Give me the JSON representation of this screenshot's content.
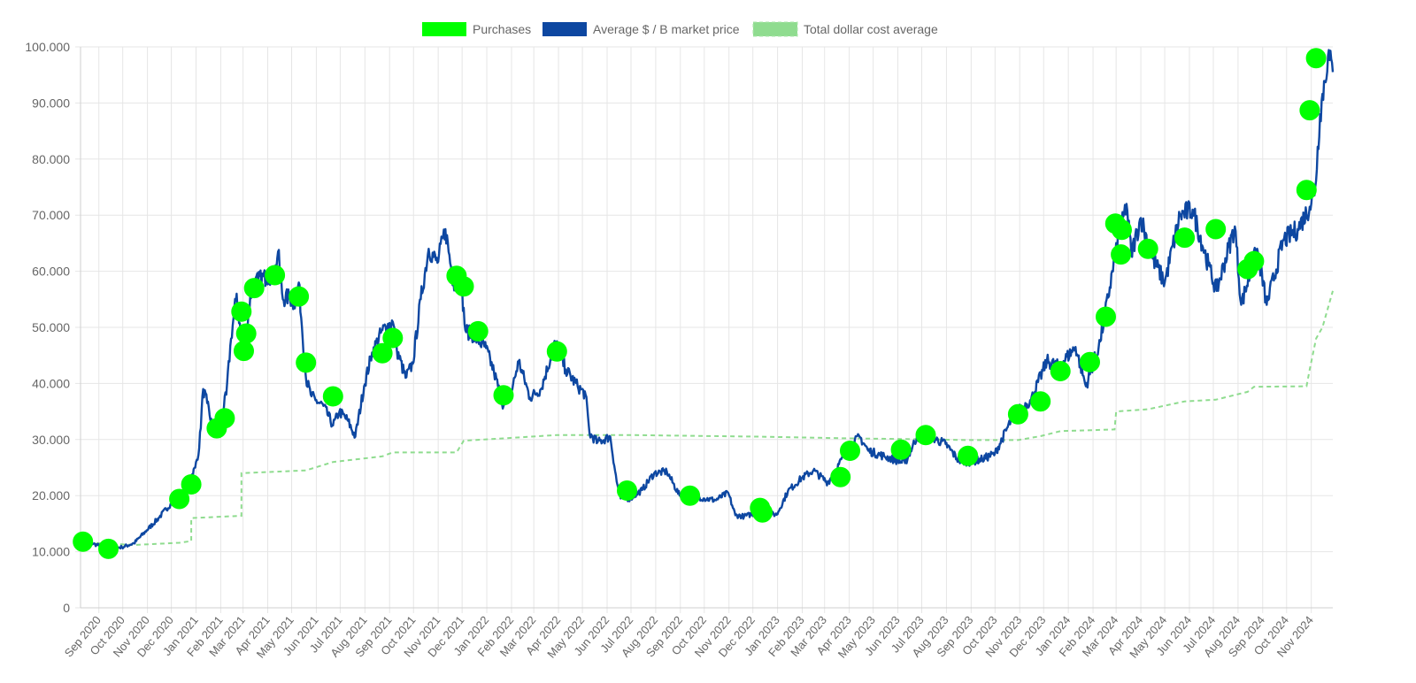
{
  "chart_data": {
    "type": "line",
    "legend_position": "top-center",
    "grid": true,
    "ylim": [
      0,
      100000
    ],
    "y_ticks": [
      "100.000",
      "90.000",
      "80.000",
      "70.000",
      "60.000",
      "50.000",
      "40.000",
      "30.000",
      "20.000",
      "10.000",
      "0"
    ],
    "y_tick_values": [
      100000,
      90000,
      80000,
      70000,
      60000,
      50000,
      40000,
      30000,
      20000,
      10000,
      0
    ],
    "x_start": "2020-08-09",
    "x_end": "2024-11-28",
    "categories": [
      "Sep 2020",
      "Oct 2020",
      "Nov 2020",
      "Dec 2020",
      "Jan 2021",
      "Feb 2021",
      "Mar 2021",
      "Apr 2021",
      "May 2021",
      "Jun 2021",
      "Jul 2021",
      "Aug 2021",
      "Sep 2021",
      "Oct 2021",
      "Nov 2021",
      "Dec 2021",
      "Jan 2022",
      "Feb 2022",
      "Mar 2022",
      "Apr 2022",
      "May 2022",
      "Jun 2022",
      "Jul 2022",
      "Aug 2022",
      "Sep 2022",
      "Oct 2022",
      "Nov 2022",
      "Dec 2022",
      "Jan 2023",
      "Feb 2023",
      "Mar 2023",
      "Apr 2023",
      "May 2023",
      "Jun 2023",
      "Jul 2023",
      "Aug 2023",
      "Sep 2023",
      "Oct 2023",
      "Nov 2023",
      "Dec 2023",
      "Jan 2024",
      "Feb 2024",
      "Mar 2024",
      "Apr 2024",
      "May 2024",
      "Jun 2024",
      "Jul 2024",
      "Aug 2024",
      "Sep 2024",
      "Oct 2024",
      "Nov 2024"
    ],
    "category_dates": [
      "2020-09-01",
      "2020-10-01",
      "2020-11-01",
      "2020-12-01",
      "2021-01-01",
      "2021-02-01",
      "2021-03-01",
      "2021-04-01",
      "2021-05-01",
      "2021-06-01",
      "2021-07-01",
      "2021-08-01",
      "2021-09-01",
      "2021-10-01",
      "2021-11-01",
      "2021-12-01",
      "2022-01-01",
      "2022-02-01",
      "2022-03-01",
      "2022-04-01",
      "2022-05-01",
      "2022-06-01",
      "2022-07-01",
      "2022-08-01",
      "2022-09-01",
      "2022-10-01",
      "2022-11-01",
      "2022-12-01",
      "2023-01-01",
      "2023-02-01",
      "2023-03-01",
      "2023-04-01",
      "2023-05-01",
      "2023-06-01",
      "2023-07-01",
      "2023-08-01",
      "2023-09-01",
      "2023-10-01",
      "2023-11-01",
      "2023-12-01",
      "2024-01-01",
      "2024-02-01",
      "2024-03-01",
      "2024-04-01",
      "2024-05-01",
      "2024-06-01",
      "2024-07-01",
      "2024-08-01",
      "2024-09-01",
      "2024-10-01",
      "2024-11-01"
    ],
    "series": [
      {
        "name": "Purchases",
        "kind": "points",
        "color": "#00ff00",
        "points": [
          [
            "2020-08-12",
            11800
          ],
          [
            "2020-09-13",
            10500
          ],
          [
            "2020-12-11",
            19400
          ],
          [
            "2020-12-26",
            22000
          ],
          [
            "2021-01-27",
            32000
          ],
          [
            "2021-02-06",
            33800
          ],
          [
            "2021-02-27",
            52800
          ],
          [
            "2021-03-02",
            45800
          ],
          [
            "2021-03-05",
            48900
          ],
          [
            "2021-03-15",
            57000
          ],
          [
            "2021-04-10",
            59300
          ],
          [
            "2021-05-10",
            55500
          ],
          [
            "2021-05-19",
            43700
          ],
          [
            "2021-06-22",
            37700
          ],
          [
            "2021-08-23",
            45400
          ],
          [
            "2021-09-05",
            48100
          ],
          [
            "2021-11-24",
            59200
          ],
          [
            "2021-12-03",
            57300
          ],
          [
            "2021-12-21",
            49300
          ],
          [
            "2022-01-22",
            37900
          ],
          [
            "2022-03-30",
            45700
          ],
          [
            "2022-06-26",
            20900
          ],
          [
            "2022-09-13",
            20000
          ],
          [
            "2022-12-10",
            17800
          ],
          [
            "2022-12-13",
            17000
          ],
          [
            "2023-03-21",
            23300
          ],
          [
            "2023-04-02",
            28000
          ],
          [
            "2023-06-05",
            28200
          ],
          [
            "2023-07-06",
            30800
          ],
          [
            "2023-08-28",
            27100
          ],
          [
            "2023-10-30",
            34500
          ],
          [
            "2023-11-27",
            36800
          ],
          [
            "2023-12-22",
            42200
          ],
          [
            "2024-01-28",
            43800
          ],
          [
            "2024-02-17",
            51900
          ],
          [
            "2024-02-29",
            68500
          ],
          [
            "2024-03-07",
            63000
          ],
          [
            "2024-03-08",
            67400
          ],
          [
            "2024-04-10",
            64000
          ],
          [
            "2024-05-26",
            66000
          ],
          [
            "2024-07-04",
            67500
          ],
          [
            "2024-08-13",
            60400
          ],
          [
            "2024-08-21",
            61800
          ],
          [
            "2024-10-26",
            74500
          ],
          [
            "2024-10-30",
            88700
          ],
          [
            "2024-11-07",
            98000
          ]
        ]
      },
      {
        "name": "Average $ / B market price",
        "kind": "line",
        "color": "#0d47a1",
        "points": [
          [
            "2020-08-09",
            11700
          ],
          [
            "2020-08-25",
            11400
          ],
          [
            "2020-09-13",
            10600
          ],
          [
            "2020-09-30",
            10800
          ],
          [
            "2020-10-15",
            11500
          ],
          [
            "2020-10-31",
            13800
          ],
          [
            "2020-11-15",
            16000
          ],
          [
            "2020-11-30",
            18500
          ],
          [
            "2020-12-15",
            19800
          ],
          [
            "2020-12-31",
            25000
          ],
          [
            "2021-01-05",
            28500
          ],
          [
            "2021-01-10",
            39000
          ],
          [
            "2021-01-15",
            36500
          ],
          [
            "2021-01-22",
            32000
          ],
          [
            "2021-01-31",
            33000
          ],
          [
            "2021-02-08",
            38000
          ],
          [
            "2021-02-14",
            48000
          ],
          [
            "2021-02-21",
            56000
          ],
          [
            "2021-02-28",
            46000
          ],
          [
            "2021-03-05",
            49000
          ],
          [
            "2021-03-12",
            57000
          ],
          [
            "2021-03-20",
            58500
          ],
          [
            "2021-03-31",
            59000
          ],
          [
            "2021-04-10",
            59500
          ],
          [
            "2021-04-14",
            63500
          ],
          [
            "2021-04-20",
            55000
          ],
          [
            "2021-04-28",
            55500
          ],
          [
            "2021-05-04",
            54000
          ],
          [
            "2021-05-10",
            58000
          ],
          [
            "2021-05-14",
            50000
          ],
          [
            "2021-05-19",
            41000
          ],
          [
            "2021-05-25",
            38000
          ],
          [
            "2021-05-31",
            37000
          ],
          [
            "2021-06-10",
            36000
          ],
          [
            "2021-06-22",
            32500
          ],
          [
            "2021-06-30",
            35000
          ],
          [
            "2021-07-10",
            33500
          ],
          [
            "2021-07-20",
            30500
          ],
          [
            "2021-07-31",
            39500
          ],
          [
            "2021-08-10",
            45500
          ],
          [
            "2021-08-23",
            49500
          ],
          [
            "2021-09-05",
            51000
          ],
          [
            "2021-09-10",
            46000
          ],
          [
            "2021-09-21",
            41000
          ],
          [
            "2021-09-30",
            43500
          ],
          [
            "2021-10-10",
            55000
          ],
          [
            "2021-10-20",
            64000
          ],
          [
            "2021-10-31",
            61500
          ],
          [
            "2021-11-10",
            67500
          ],
          [
            "2021-11-20",
            58000
          ],
          [
            "2021-11-30",
            57500
          ],
          [
            "2021-12-05",
            49500
          ],
          [
            "2021-12-15",
            48500
          ],
          [
            "2021-12-31",
            46300
          ],
          [
            "2022-01-10",
            42000
          ],
          [
            "2022-01-22",
            36000
          ],
          [
            "2022-01-31",
            38000
          ],
          [
            "2022-02-10",
            44000
          ],
          [
            "2022-02-24",
            37500
          ],
          [
            "2022-03-10",
            39000
          ],
          [
            "2022-03-28",
            47300
          ],
          [
            "2022-04-10",
            42500
          ],
          [
            "2022-04-25",
            39500
          ],
          [
            "2022-05-05",
            38000
          ],
          [
            "2022-05-10",
            31000
          ],
          [
            "2022-05-20",
            29500
          ],
          [
            "2022-06-05",
            30500
          ],
          [
            "2022-06-13",
            22500
          ],
          [
            "2022-06-18",
            19500
          ],
          [
            "2022-06-30",
            19500
          ],
          [
            "2022-07-15",
            21000
          ],
          [
            "2022-07-30",
            24000
          ],
          [
            "2022-08-15",
            24300
          ],
          [
            "2022-08-31",
            20000
          ],
          [
            "2022-09-13",
            20200
          ],
          [
            "2022-09-30",
            19500
          ],
          [
            "2022-10-15",
            19200
          ],
          [
            "2022-10-31",
            20500
          ],
          [
            "2022-11-09",
            16500
          ],
          [
            "2022-11-20",
            16300
          ],
          [
            "2022-12-10",
            17100
          ],
          [
            "2022-12-31",
            16600
          ],
          [
            "2023-01-14",
            20800
          ],
          [
            "2023-01-31",
            23100
          ],
          [
            "2023-02-15",
            24500
          ],
          [
            "2023-03-05",
            22300
          ],
          [
            "2023-03-15",
            24500
          ],
          [
            "2023-03-31",
            28500
          ],
          [
            "2023-04-14",
            30500
          ],
          [
            "2023-04-25",
            28000
          ],
          [
            "2023-05-15",
            27000
          ],
          [
            "2023-06-10",
            25800
          ],
          [
            "2023-06-25",
            30500
          ],
          [
            "2023-07-15",
            30300
          ],
          [
            "2023-07-31",
            29200
          ],
          [
            "2023-08-17",
            26200
          ],
          [
            "2023-08-31",
            26000
          ],
          [
            "2023-09-15",
            26500
          ],
          [
            "2023-10-01",
            27500
          ],
          [
            "2023-10-25",
            34500
          ],
          [
            "2023-11-15",
            37000
          ],
          [
            "2023-12-05",
            44000
          ],
          [
            "2023-12-20",
            43000
          ],
          [
            "2024-01-10",
            46500
          ],
          [
            "2024-01-23",
            39500
          ],
          [
            "2024-02-10",
            47500
          ],
          [
            "2024-02-28",
            62000
          ],
          [
            "2024-03-14",
            72000
          ],
          [
            "2024-03-20",
            63000
          ],
          [
            "2024-04-01",
            69500
          ],
          [
            "2024-04-15",
            62500
          ],
          [
            "2024-05-01",
            58000
          ],
          [
            "2024-05-20",
            70000
          ],
          [
            "2024-06-05",
            71000
          ],
          [
            "2024-06-25",
            61000
          ],
          [
            "2024-07-05",
            56500
          ],
          [
            "2024-07-28",
            68000
          ],
          [
            "2024-08-05",
            54000
          ],
          [
            "2024-08-25",
            64000
          ],
          [
            "2024-09-06",
            54000
          ],
          [
            "2024-09-27",
            65500
          ],
          [
            "2024-10-15",
            67500
          ],
          [
            "2024-10-30",
            71500
          ],
          [
            "2024-11-06",
            75000
          ],
          [
            "2024-11-12",
            88000
          ],
          [
            "2024-11-22",
            98500
          ],
          [
            "2024-11-28",
            95500
          ]
        ]
      },
      {
        "name": "Total dollar cost average",
        "kind": "dashed-line",
        "color": "#8fdc8f",
        "points": [
          [
            "2020-08-09",
            11700
          ],
          [
            "2020-10-15",
            11200
          ],
          [
            "2020-12-11",
            11600
          ],
          [
            "2020-12-26",
            11900
          ],
          [
            "2020-12-26",
            16000
          ],
          [
            "2021-02-27",
            16400
          ],
          [
            "2021-02-27",
            24000
          ],
          [
            "2021-05-19",
            24500
          ],
          [
            "2021-06-22",
            26000
          ],
          [
            "2021-08-23",
            27000
          ],
          [
            "2021-09-05",
            27700
          ],
          [
            "2021-11-24",
            27700
          ],
          [
            "2021-12-03",
            29800
          ],
          [
            "2022-01-22",
            30200
          ],
          [
            "2022-03-30",
            30800
          ],
          [
            "2022-06-26",
            30800
          ],
          [
            "2022-12-13",
            30500
          ],
          [
            "2023-04-02",
            30200
          ],
          [
            "2023-06-05",
            30100
          ],
          [
            "2023-08-28",
            29900
          ],
          [
            "2023-10-30",
            29900
          ],
          [
            "2023-11-27",
            30600
          ],
          [
            "2023-12-22",
            31500
          ],
          [
            "2024-02-28",
            31800
          ],
          [
            "2024-03-01",
            35000
          ],
          [
            "2024-04-10",
            35400
          ],
          [
            "2024-05-26",
            36800
          ],
          [
            "2024-07-04",
            37100
          ],
          [
            "2024-08-13",
            38500
          ],
          [
            "2024-08-21",
            39400
          ],
          [
            "2024-10-26",
            39500
          ],
          [
            "2024-10-30",
            42500
          ],
          [
            "2024-11-07",
            48000
          ],
          [
            "2024-11-15",
            50000
          ],
          [
            "2024-11-28",
            56500
          ]
        ]
      }
    ]
  }
}
